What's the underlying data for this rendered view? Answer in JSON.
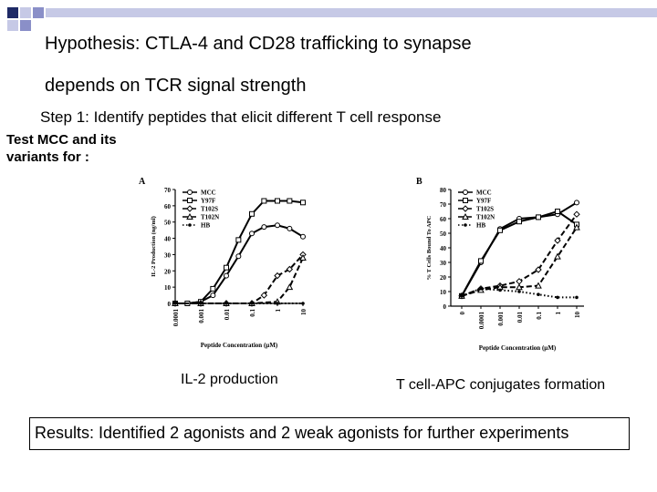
{
  "slide": {
    "title_line1": "Hypothesis: CTLA-4 and CD28 trafficking to synapse",
    "title_line2": "depends on TCR signal strength",
    "step": "Step 1: Identify peptides that elicit different T cell response",
    "test_label_line1": "Test MCC and its",
    "test_label_line2": "variants for :",
    "caption_left": "IL-2 production",
    "caption_right": "T cell-APC conjugates formation",
    "results": "Results: Identified 2 agonists and 2 weak agonists for further experiments",
    "accent_colors": [
      "#1f2a66",
      "#8a8fc8",
      "#c6c9e6"
    ]
  },
  "chart_data": [
    {
      "type": "line",
      "panel": "A",
      "ylabel": "IL-2 Production (ng/ml)",
      "xlabel": "Peptide Concentration (µM)",
      "x_tick_labels": [
        "0.0001",
        "0.001",
        "0.01",
        "0.1",
        "1",
        "10"
      ],
      "y_ticks": [
        0,
        10,
        20,
        30,
        40,
        50,
        60,
        70
      ],
      "ylim": [
        0,
        70
      ],
      "xlog_range": [
        -4,
        1
      ],
      "series": [
        {
          "name": "MCC",
          "x": [
            0.0001,
            0.0003,
            0.001,
            0.003,
            0.01,
            0.03,
            0.1,
            0.3,
            1,
            3,
            10
          ],
          "y": [
            0,
            0,
            1,
            5,
            17,
            29,
            43,
            47,
            48,
            46,
            41
          ]
        },
        {
          "name": "Y97F",
          "x": [
            0.0001,
            0.0003,
            0.001,
            0.003,
            0.01,
            0.03,
            0.1,
            0.3,
            1,
            3,
            10
          ],
          "y": [
            0,
            0,
            1,
            9,
            22,
            39,
            55,
            63,
            63,
            63,
            62
          ]
        },
        {
          "name": "T102S",
          "x": [
            0.0001,
            0.001,
            0.01,
            0.1,
            0.3,
            1,
            3,
            10
          ],
          "y": [
            0,
            0,
            0,
            0,
            5,
            17,
            21,
            30
          ]
        },
        {
          "name": "T102N",
          "x": [
            0.0001,
            0.001,
            0.01,
            0.1,
            1,
            3,
            10
          ],
          "y": [
            0,
            0,
            0,
            0,
            1,
            10,
            28
          ]
        },
        {
          "name": "HB",
          "x": [
            0.0001,
            0.001,
            0.01,
            0.1,
            1,
            10
          ],
          "y": [
            0,
            0,
            0,
            0,
            0,
            0
          ]
        }
      ]
    },
    {
      "type": "line",
      "panel": "B",
      "ylabel": "% T Cells Bound To APC",
      "xlabel": "Peptide Concentration (µM)",
      "x_tick_labels": [
        "0",
        "0.0001",
        "0.001",
        "0.01",
        "0.1",
        "1",
        "10"
      ],
      "y_ticks": [
        0,
        10,
        20,
        30,
        40,
        50,
        60,
        70,
        80
      ],
      "ylim": [
        0,
        80
      ],
      "series": [
        {
          "name": "MCC",
          "x": [
            "0",
            "0.0001",
            "0.001",
            "0.01",
            "0.1",
            "1",
            "10"
          ],
          "y": [
            7,
            30,
            53,
            60,
            61,
            63,
            71
          ]
        },
        {
          "name": "Y97F",
          "x": [
            "0",
            "0.0001",
            "0.001",
            "0.01",
            "0.1",
            "1",
            "10"
          ],
          "y": [
            7,
            31,
            52,
            58,
            61,
            65,
            56
          ]
        },
        {
          "name": "T102S",
          "x": [
            "0",
            "0.0001",
            "0.001",
            "0.01",
            "0.1",
            "1",
            "10"
          ],
          "y": [
            7,
            12,
            14,
            17,
            25,
            45,
            63
          ]
        },
        {
          "name": "T102N",
          "x": [
            "0",
            "0.0001",
            "0.001",
            "0.01",
            "0.1",
            "1",
            "10"
          ],
          "y": [
            7,
            11,
            13,
            13,
            14,
            34,
            54
          ]
        },
        {
          "name": "HB",
          "x": [
            "0",
            "0.0001",
            "0.001",
            "0.01",
            "0.1",
            "1",
            "10"
          ],
          "y": [
            7,
            12,
            11,
            10,
            8,
            6,
            6
          ]
        }
      ]
    }
  ]
}
